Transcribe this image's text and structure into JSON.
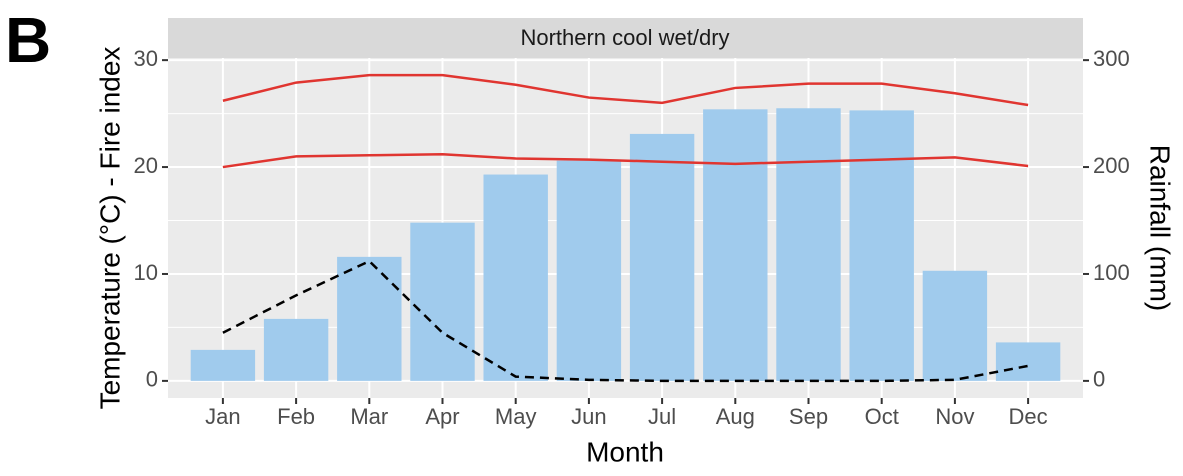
{
  "panel_label": "B",
  "chart_data": {
    "type": "combo",
    "strip": "Northern cool wet/dry",
    "x_label": "Month",
    "y_label": "Temperature (°C) - Fire index",
    "y2_label": "Rainfall (mm)",
    "categories": [
      "Jan",
      "Feb",
      "Mar",
      "Apr",
      "May",
      "Jun",
      "Jul",
      "Aug",
      "Sep",
      "Oct",
      "Nov",
      "Dec"
    ],
    "ylim": [
      -1.6,
      30.2
    ],
    "yticks": [
      0,
      10,
      20,
      30
    ],
    "y_minor_ticks": [
      5,
      15,
      25
    ],
    "y2lim": [
      -16,
      302
    ],
    "y2ticks": [
      0,
      100,
      200,
      300
    ],
    "grid": true,
    "series": [
      {
        "type": "bar",
        "axis": "y2",
        "color": "#a0cbed",
        "values": [
          29,
          58,
          116,
          148,
          193,
          206,
          231,
          254,
          255,
          253,
          103,
          36
        ]
      },
      {
        "type": "line",
        "color": "#e03530",
        "dashed": false,
        "values": [
          26.2,
          27.9,
          28.6,
          28.6,
          27.7,
          26.5,
          26.0,
          27.4,
          27.8,
          27.8,
          26.9,
          25.8
        ]
      },
      {
        "type": "line",
        "color": "#e03530",
        "dashed": false,
        "values": [
          20.0,
          21.0,
          21.1,
          21.2,
          20.8,
          20.7,
          20.5,
          20.3,
          20.5,
          20.7,
          20.9,
          20.1
        ]
      },
      {
        "type": "line",
        "color": "#000000",
        "dashed": true,
        "values": [
          4.5,
          8.0,
          11.2,
          4.5,
          0.4,
          0.1,
          0,
          0,
          0,
          0,
          0.1,
          1.4
        ]
      }
    ]
  }
}
